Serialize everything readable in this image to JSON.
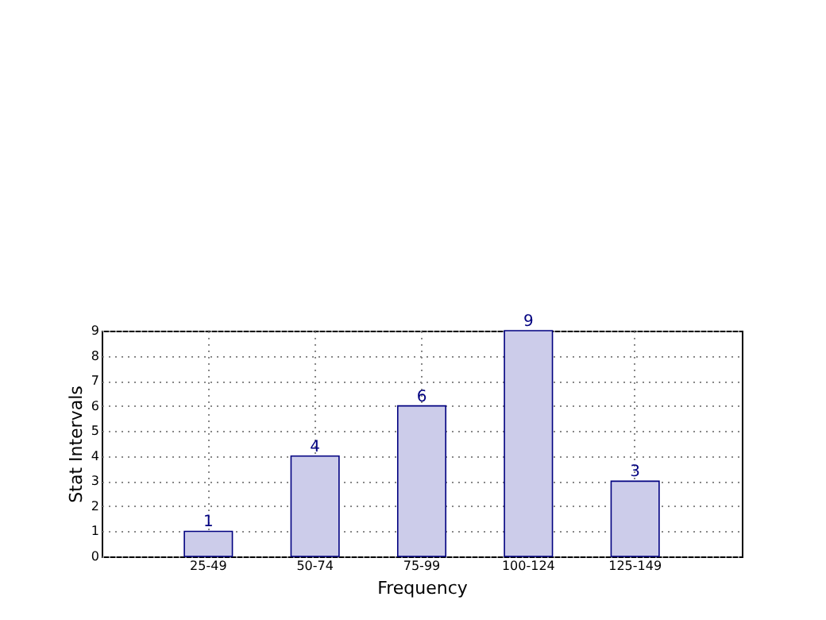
{
  "chart_data": {
    "type": "bar",
    "xlabel": "Frequency",
    "ylabel": "Stat Intervals",
    "categories": [
      "25-49",
      "50-74",
      "75-99",
      "100-124",
      "125-149"
    ],
    "values": [
      1,
      4,
      6,
      9,
      3
    ],
    "color": "#ccccea",
    "ylim": [
      0,
      9
    ],
    "yticks": [
      0,
      1,
      2,
      3,
      4,
      5,
      6,
      7,
      8,
      9
    ],
    "grid": true,
    "data_labels": true
  }
}
